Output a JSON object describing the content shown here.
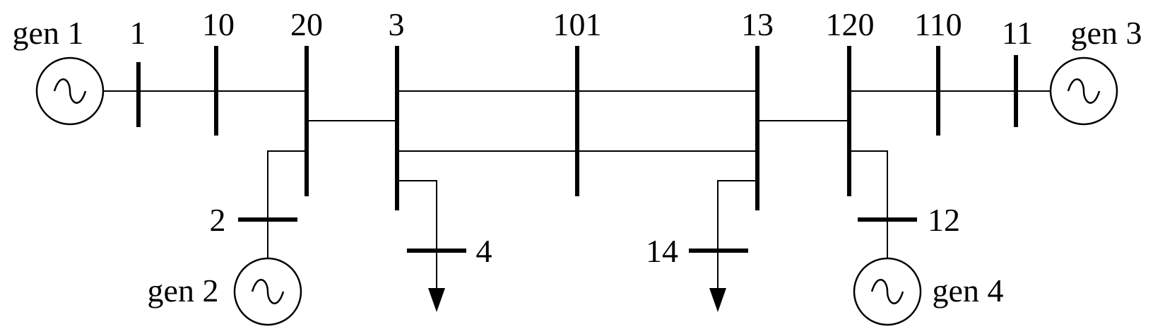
{
  "diagram": {
    "generators": {
      "gen1": "gen 1",
      "gen2": "gen 2",
      "gen3": "gen 3",
      "gen4": "gen 4"
    },
    "buses": {
      "b1": "1",
      "b10": "10",
      "b20": "20",
      "b3": "3",
      "b101": "101",
      "b13": "13",
      "b120": "120",
      "b110": "110",
      "b11": "11",
      "b2": "2",
      "b12": "12",
      "b4": "4",
      "b14": "14"
    }
  }
}
